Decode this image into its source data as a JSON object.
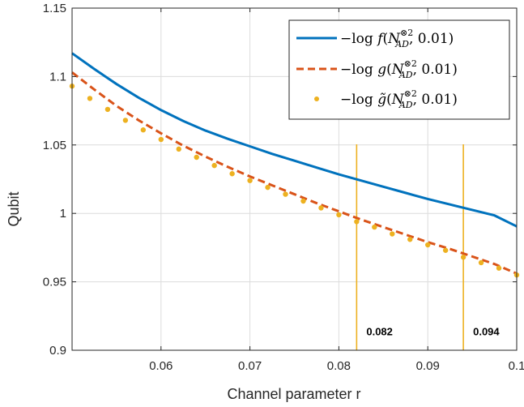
{
  "chart_data": {
    "type": "line",
    "xlabel": "Channel parameter r",
    "ylabel": "Qubit",
    "xlim": [
      0.05,
      0.1
    ],
    "ylim": [
      0.9,
      1.15
    ],
    "x_ticks": [
      0.06,
      0.07,
      0.08,
      0.09,
      0.1
    ],
    "x_tick_labels": [
      "0.06",
      "0.07",
      "0.08",
      "0.09",
      "0.1"
    ],
    "y_ticks": [
      0.9,
      0.95,
      1.0,
      1.05,
      1.1,
      1.15
    ],
    "y_tick_labels": [
      "0.9",
      "0.95",
      "1",
      "1.05",
      "1.1",
      "1.15"
    ],
    "grid": true,
    "legend_position": "top-right",
    "series": [
      {
        "name": "−log f(N_AD^{⊗2}, 0.01)",
        "style": "solid",
        "color": "#0072bd",
        "x": [
          0.05,
          0.0525,
          0.055,
          0.0575,
          0.06,
          0.0625,
          0.065,
          0.0675,
          0.07,
          0.0725,
          0.075,
          0.0775,
          0.08,
          0.0825,
          0.085,
          0.0875,
          0.09,
          0.0925,
          0.095,
          0.0975,
          0.1
        ],
        "y": [
          1.117,
          1.1055,
          1.0945,
          1.0845,
          1.0755,
          1.0675,
          1.0605,
          1.0545,
          1.049,
          1.0435,
          1.0385,
          1.0335,
          1.0285,
          1.024,
          1.0195,
          1.015,
          1.0105,
          1.0065,
          1.0025,
          0.9985,
          0.9905
        ]
      },
      {
        "name": "−log g(N_AD^{⊗2}, 0.01)",
        "style": "dashed",
        "color": "#d95319",
        "x": [
          0.05,
          0.0525,
          0.055,
          0.0575,
          0.06,
          0.0625,
          0.065,
          0.0675,
          0.07,
          0.0725,
          0.075,
          0.0775,
          0.08,
          0.0825,
          0.085,
          0.0875,
          0.09,
          0.0925,
          0.095,
          0.0975,
          0.1
        ],
        "y": [
          1.103,
          1.0905,
          1.0785,
          1.068,
          1.0585,
          1.0495,
          1.0415,
          1.034,
          1.027,
          1.0205,
          1.014,
          1.0075,
          1.0015,
          0.9955,
          0.99,
          0.9845,
          0.979,
          0.974,
          0.9685,
          0.963,
          0.956
        ]
      },
      {
        "name": "−log g̃(N_AD^{⊗2}, 0.01)",
        "style": "dots",
        "color": "#edb120",
        "x": [
          0.05,
          0.052,
          0.054,
          0.056,
          0.058,
          0.06,
          0.062,
          0.064,
          0.066,
          0.068,
          0.07,
          0.072,
          0.074,
          0.076,
          0.078,
          0.08,
          0.082,
          0.084,
          0.086,
          0.088,
          0.09,
          0.092,
          0.094,
          0.096,
          0.098,
          0.1
        ],
        "y": [
          1.093,
          1.084,
          1.076,
          1.068,
          1.061,
          1.054,
          1.047,
          1.041,
          1.035,
          1.029,
          1.024,
          1.019,
          1.014,
          1.009,
          1.004,
          0.999,
          0.994,
          0.99,
          0.985,
          0.981,
          0.977,
          0.973,
          0.968,
          0.964,
          0.96,
          0.955
        ]
      }
    ],
    "vertical_lines": [
      {
        "x": 0.082,
        "label": "0.082",
        "color": "#edb120"
      },
      {
        "x": 0.094,
        "label": "0.094",
        "color": "#edb120"
      }
    ]
  }
}
